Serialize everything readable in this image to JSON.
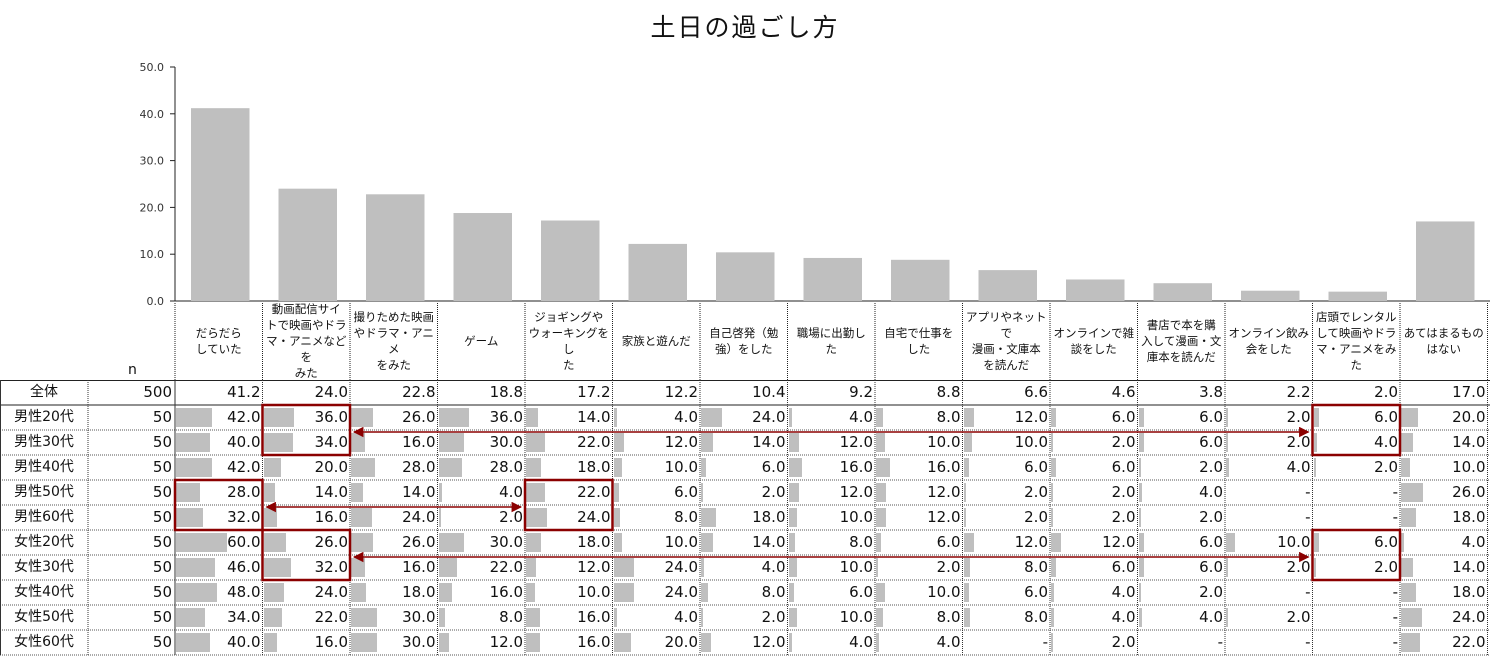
{
  "title": "土日の過ごし方",
  "n_header": "n",
  "colors": {
    "bar": "#bfbfbf",
    "highlight": "#8b0000"
  },
  "chart_data": {
    "type": "bar",
    "title": "土日の過ごし方",
    "ylim": [
      0,
      50
    ],
    "yticks": [
      "0.0",
      "10.0",
      "20.0",
      "30.0",
      "40.0",
      "50.0"
    ],
    "categories": [
      "だらだら\nしていた",
      "動画配信サイ\nトで映画やドラ\nマ・アニメなどを\nみた",
      "撮りためた映画\nやドラマ・アニメ\nをみた",
      "ゲーム",
      "ジョギングや\nウォーキングをし\nた",
      "家族と遊んだ",
      "自己啓発（勉\n強）をした",
      "職場に出勤し\nた",
      "自宅で仕事を\nした",
      "アプリやネットで\n漫画・文庫本\nを読んだ",
      "オンラインで雑\n談をした",
      "書店で本を購\n入して漫画・文\n庫本を読んだ",
      "オンライン飲み\n会をした",
      "店頭でレンタル\nして映画やドラ\nマ・アニメをみた",
      "あてはまるもの\nはない"
    ],
    "values": [
      41.2,
      24.0,
      22.8,
      18.8,
      17.2,
      12.2,
      10.4,
      9.2,
      8.8,
      6.6,
      4.6,
      3.8,
      2.2,
      2.0,
      17.0
    ],
    "grid": false,
    "legend": "none"
  },
  "table": {
    "rows": [
      {
        "label": "全体",
        "n": "500",
        "values": [
          "41.2",
          "24.0",
          "22.8",
          "18.8",
          "17.2",
          "12.2",
          "10.4",
          "9.2",
          "8.8",
          "6.6",
          "4.6",
          "3.8",
          "2.2",
          "2.0",
          "17.0"
        ]
      },
      {
        "label": "男性20代",
        "n": "50",
        "values": [
          "42.0",
          "36.0",
          "26.0",
          "36.0",
          "14.0",
          "4.0",
          "24.0",
          "4.0",
          "8.0",
          "12.0",
          "6.0",
          "6.0",
          "2.0",
          "6.0",
          "20.0"
        ]
      },
      {
        "label": "男性30代",
        "n": "50",
        "values": [
          "40.0",
          "34.0",
          "16.0",
          "30.0",
          "22.0",
          "12.0",
          "14.0",
          "12.0",
          "10.0",
          "10.0",
          "2.0",
          "6.0",
          "2.0",
          "4.0",
          "14.0"
        ]
      },
      {
        "label": "男性40代",
        "n": "50",
        "values": [
          "42.0",
          "20.0",
          "28.0",
          "28.0",
          "18.0",
          "10.0",
          "6.0",
          "16.0",
          "16.0",
          "6.0",
          "6.0",
          "2.0",
          "4.0",
          "2.0",
          "10.0"
        ]
      },
      {
        "label": "男性50代",
        "n": "50",
        "values": [
          "28.0",
          "14.0",
          "14.0",
          "4.0",
          "22.0",
          "6.0",
          "2.0",
          "12.0",
          "12.0",
          "2.0",
          "2.0",
          "4.0",
          "-",
          "-",
          "26.0"
        ]
      },
      {
        "label": "男性60代",
        "n": "50",
        "values": [
          "32.0",
          "16.0",
          "24.0",
          "2.0",
          "24.0",
          "8.0",
          "18.0",
          "10.0",
          "12.0",
          "2.0",
          "2.0",
          "2.0",
          "-",
          "-",
          "18.0"
        ]
      },
      {
        "label": "女性20代",
        "n": "50",
        "values": [
          "60.0",
          "26.0",
          "26.0",
          "30.0",
          "18.0",
          "10.0",
          "14.0",
          "8.0",
          "6.0",
          "12.0",
          "12.0",
          "6.0",
          "10.0",
          "6.0",
          "4.0"
        ]
      },
      {
        "label": "女性30代",
        "n": "50",
        "values": [
          "46.0",
          "32.0",
          "16.0",
          "22.0",
          "12.0",
          "24.0",
          "4.0",
          "10.0",
          "2.0",
          "8.0",
          "6.0",
          "6.0",
          "2.0",
          "2.0",
          "14.0"
        ]
      },
      {
        "label": "女性40代",
        "n": "50",
        "values": [
          "48.0",
          "24.0",
          "18.0",
          "16.0",
          "10.0",
          "24.0",
          "8.0",
          "6.0",
          "10.0",
          "6.0",
          "4.0",
          "2.0",
          "-",
          "-",
          "18.0"
        ]
      },
      {
        "label": "女性50代",
        "n": "50",
        "values": [
          "34.0",
          "22.0",
          "30.0",
          "8.0",
          "16.0",
          "4.0",
          "2.0",
          "10.0",
          "8.0",
          "8.0",
          "4.0",
          "4.0",
          "2.0",
          "-",
          "24.0"
        ]
      },
      {
        "label": "女性60代",
        "n": "50",
        "values": [
          "40.0",
          "16.0",
          "30.0",
          "12.0",
          "16.0",
          "20.0",
          "12.0",
          "4.0",
          "4.0",
          "-",
          "2.0",
          "-",
          "-",
          "-",
          "22.0"
        ]
      }
    ]
  },
  "highlights": [
    {
      "col": 1,
      "rows": [
        1,
        2
      ]
    },
    {
      "col": 13,
      "rows": [
        1,
        2
      ]
    },
    {
      "col": 0,
      "rows": [
        4,
        5
      ]
    },
    {
      "col": 4,
      "rows": [
        4,
        5
      ]
    },
    {
      "col": 1,
      "rows": [
        6,
        7
      ]
    },
    {
      "col": 13,
      "rows": [
        6,
        7
      ]
    }
  ],
  "arrows": [
    {
      "from_col": 1,
      "to_col": 13,
      "rows": [
        1,
        2
      ]
    },
    {
      "from_col": 0,
      "to_col": 4,
      "rows": [
        4,
        5
      ]
    },
    {
      "from_col": 1,
      "to_col": 13,
      "rows": [
        6,
        7
      ]
    }
  ]
}
